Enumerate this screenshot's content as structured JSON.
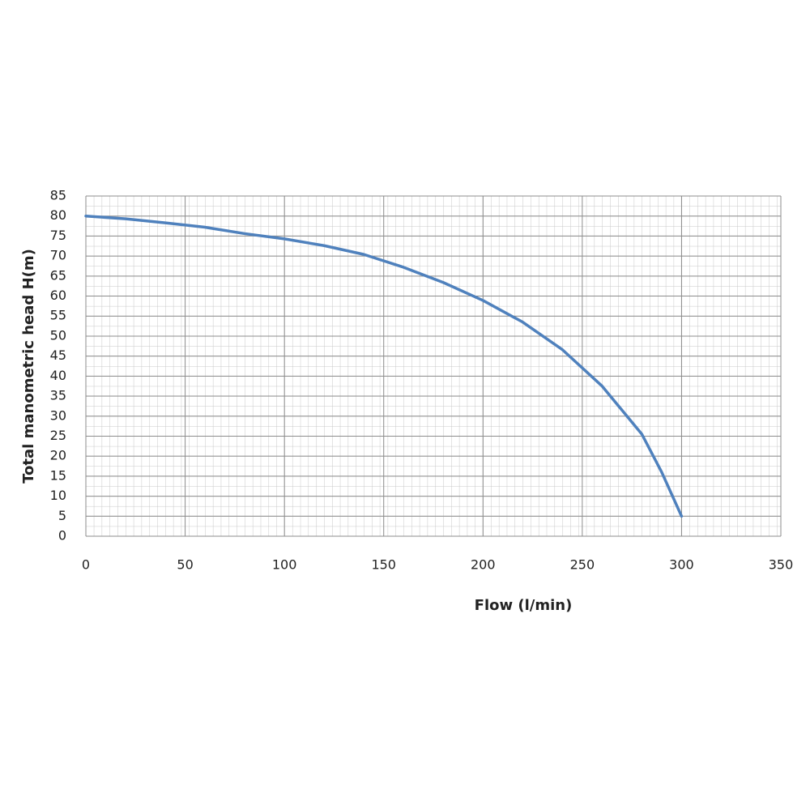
{
  "chart_data": {
    "type": "line",
    "x_label": "Flow (l/min)",
    "y_label": "Total manometric  head H(m)",
    "x": [
      0,
      20,
      40,
      60,
      80,
      100,
      120,
      140,
      160,
      180,
      200,
      220,
      240,
      260,
      280,
      290,
      300
    ],
    "series": [
      {
        "color": "#4f81bd",
        "values": [
          80,
          79.3,
          78.3,
          77.2,
          75.6,
          74.3,
          72.6,
          70.4,
          67.2,
          63.4,
          58.9,
          53.5,
          46.6,
          37.5,
          25.5,
          16,
          5
        ]
      }
    ],
    "xlim": [
      0,
      350
    ],
    "xticks": [
      0,
      50,
      100,
      150,
      200,
      250,
      300,
      350
    ],
    "ylim": [
      0,
      85
    ],
    "yticks": [
      0,
      5,
      10,
      15,
      20,
      25,
      30,
      35,
      40,
      45,
      50,
      55,
      60,
      65,
      70,
      75,
      80,
      85
    ],
    "grid": true
  }
}
